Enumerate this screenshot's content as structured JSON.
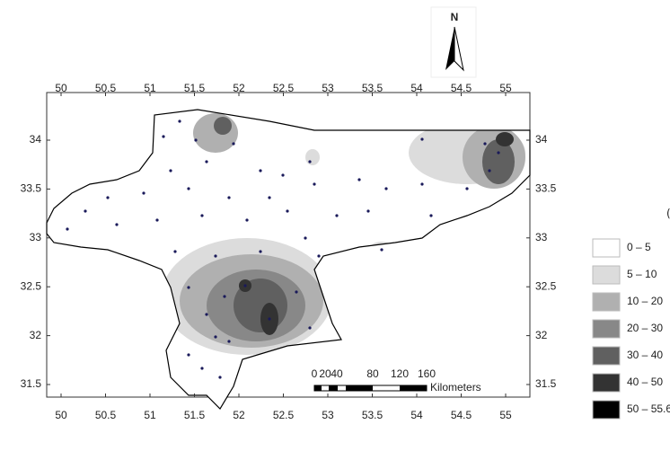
{
  "map": {
    "north": "N",
    "lon_ticks": [
      50,
      50.5,
      51,
      51.5,
      52,
      52.5,
      53,
      53.5,
      54,
      54.5,
      55
    ],
    "lat_ticks": [
      34,
      33.5,
      33,
      32.5,
      32,
      31.5
    ],
    "scale_bar": {
      "labels": [
        "0",
        "20",
        "40",
        "80",
        "120",
        "160"
      ],
      "unit": "Kilometers"
    },
    "legend": {
      "title": "پالیگورسکیت (٪)",
      "items": [
        {
          "label": "0 – 5",
          "color": "#ffffff"
        },
        {
          "label": "5 – 10",
          "color": "#dcdcdc"
        },
        {
          "label": "10 – 20",
          "color": "#b0b0b0"
        },
        {
          "label": "20 – 30",
          "color": "#888888"
        },
        {
          "label": "30 – 40",
          "color": "#606060"
        },
        {
          "label": "40 – 50",
          "color": "#333333"
        },
        {
          "label": "50 – 55.6",
          "color": "#000000"
        }
      ]
    }
  }
}
